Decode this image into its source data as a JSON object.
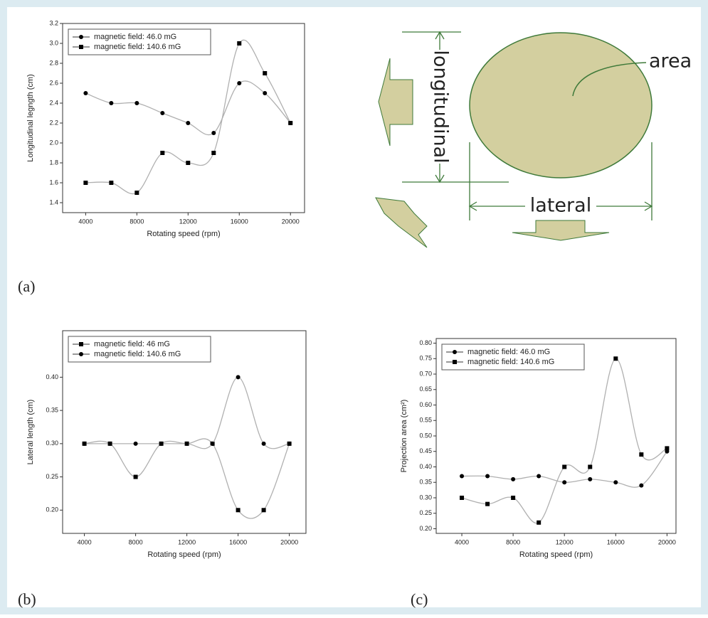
{
  "chart_data": [
    {
      "type": "line",
      "x_label": "Rotating speed (rpm)",
      "y_label": "Longitudinal legngth (cm)",
      "x": [
        4000,
        6000,
        8000,
        10000,
        12000,
        14000,
        16000,
        18000,
        20000
      ],
      "series": [
        {
          "name": "magnetic field: 46.0 mG",
          "marker": "circle",
          "color": "#000000",
          "values": [
            2.5,
            2.4,
            2.4,
            2.3,
            2.2,
            2.1,
            2.6,
            2.5,
            2.2
          ]
        },
        {
          "name": "magnetic field: 140.6 mG",
          "marker": "square",
          "color": "#000000",
          "values": [
            1.6,
            1.6,
            1.5,
            1.9,
            1.8,
            1.9,
            3.0,
            2.7,
            2.2
          ]
        }
      ],
      "line_color": "#b0b0b0",
      "xlim": [
        2200,
        21100
      ],
      "xticks": [
        4000,
        8000,
        12000,
        16000,
        20000
      ],
      "ylim": [
        1.3,
        3.2
      ],
      "yticks": [
        1.4,
        1.6,
        1.8,
        2.0,
        2.2,
        2.4,
        2.6,
        2.8,
        3.0,
        3.2
      ],
      "legend": "upper left"
    },
    {
      "type": "line",
      "x_label": "Rotating speed (rpm)",
      "y_label": "Lateral length (cm)",
      "x": [
        4000,
        6000,
        8000,
        10000,
        12000,
        14000,
        16000,
        18000,
        20000
      ],
      "series": [
        {
          "name": "magnetic field: 46 mG",
          "marker": "square",
          "color": "#000000",
          "values": [
            0.3,
            0.3,
            0.25,
            0.3,
            0.3,
            0.3,
            0.2,
            0.2,
            0.3
          ]
        },
        {
          "name": "magnetic field: 140.6 mG",
          "marker": "circle",
          "color": "#000000",
          "values": [
            0.3,
            0.3,
            0.3,
            0.3,
            0.3,
            0.3,
            0.4,
            0.3,
            0.3
          ]
        }
      ],
      "line_color": "#b0b0b0",
      "xlim": [
        2300,
        21300
      ],
      "xticks": [
        4000,
        8000,
        12000,
        16000,
        20000
      ],
      "ylim": [
        0.165,
        0.47
      ],
      "yticks": [
        0.2,
        0.25,
        0.3,
        0.35,
        0.4
      ],
      "legend": "upper left"
    },
    {
      "type": "line",
      "x_label": "Rotating speed (rpm)",
      "y_label": "Projection area (cm²)",
      "x": [
        4000,
        6000,
        8000,
        10000,
        12000,
        14000,
        16000,
        18000,
        20000
      ],
      "series": [
        {
          "name": "magnetic field: 46.0 mG",
          "marker": "circle",
          "color": "#000000",
          "values": [
            0.37,
            0.37,
            0.36,
            0.37,
            0.35,
            0.36,
            0.35,
            0.34,
            0.45
          ]
        },
        {
          "name": "magnetic field: 140.6 mG",
          "marker": "square",
          "color": "#000000",
          "values": [
            0.3,
            0.28,
            0.3,
            0.22,
            0.4,
            0.4,
            0.75,
            0.44,
            0.46
          ]
        }
      ],
      "line_color": "#b0b0b0",
      "xlim": [
        2000,
        20700
      ],
      "xticks": [
        4000,
        8000,
        12000,
        16000,
        20000
      ],
      "ylim": [
        0.185,
        0.815
      ],
      "yticks": [
        0.2,
        0.25,
        0.3,
        0.35,
        0.4,
        0.45,
        0.5,
        0.55,
        0.6,
        0.65,
        0.7,
        0.75,
        0.8
      ],
      "legend": "upper left"
    }
  ],
  "diagram": {
    "longitudinal": "longitudinal",
    "lateral": "lateral",
    "area": "area"
  },
  "panel_labels": [
    "(a)",
    "(b)",
    "(c)"
  ]
}
